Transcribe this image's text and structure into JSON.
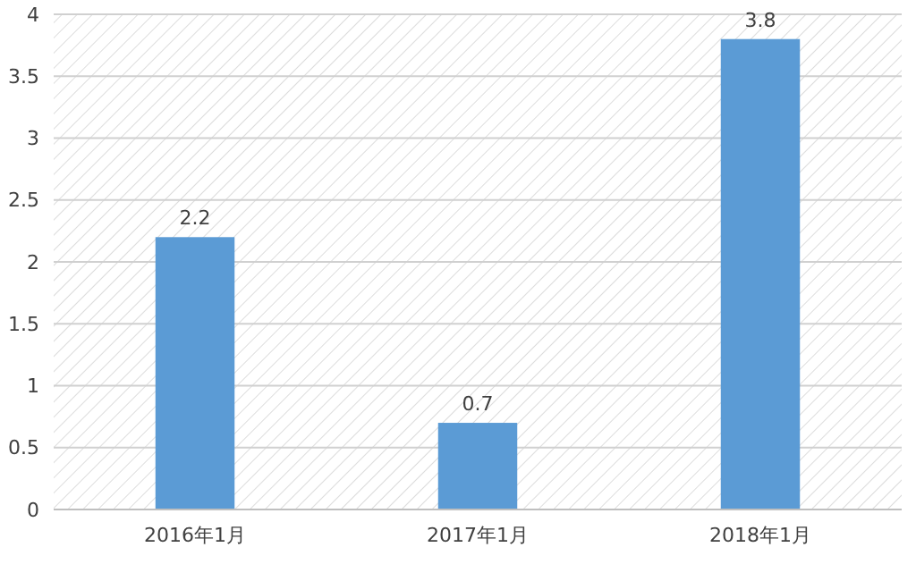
{
  "chart_data": {
    "type": "bar",
    "categories": [
      "2016年1月",
      "2017年1月",
      "2018年1月"
    ],
    "values": [
      2.2,
      0.7,
      3.8
    ],
    "color": "#5b9bd5",
    "ylim": [
      0,
      4
    ],
    "yticks": [
      0,
      0.5,
      1,
      1.5,
      2,
      2.5,
      3,
      3.5,
      4
    ],
    "grid": "y",
    "data_labels": true
  }
}
